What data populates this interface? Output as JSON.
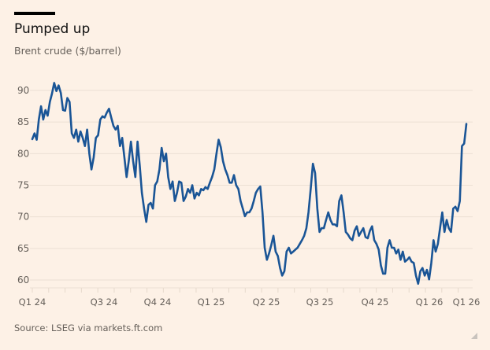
{
  "header": {
    "title": "Pumped up",
    "subtitle": "Brent crude ($/barrel)"
  },
  "footer": {
    "source": "Source: LSEG via markets.ft.com"
  },
  "colors": {
    "background": "#fdf1e6",
    "line": "#1a5596",
    "grid": "#ece0d4"
  },
  "chart_data": {
    "type": "line",
    "title": "Pumped up",
    "subtitle": "Brent crude ($/barrel)",
    "xlabel": "",
    "ylabel": "Brent crude ($/barrel)",
    "ylim": [
      58,
      92
    ],
    "yticks": [
      60,
      65,
      70,
      75,
      80,
      85,
      90
    ],
    "xticks": [
      "Q1 24",
      "Q3 24",
      "Q4 24",
      "Q1 25",
      "Q2 25",
      "Q3 25",
      "Q4 25",
      "Q1 26",
      "Q1 26"
    ],
    "x_range": [
      "Jan 2024",
      "Mar 2026"
    ],
    "grid": true,
    "legend": "none",
    "series": [
      {
        "name": "Brent crude",
        "values": [
          82.3,
          83.2,
          82.2,
          85.4,
          87.5,
          85.4,
          86.9,
          86.0,
          88.2,
          89.5,
          91.2,
          89.9,
          90.8,
          89.6,
          86.9,
          86.8,
          88.8,
          88.2,
          83.2,
          82.5,
          83.8,
          81.9,
          83.5,
          82.5,
          81.2,
          83.8,
          80.0,
          77.5,
          79.4,
          82.5,
          82.9,
          85.4,
          85.9,
          85.7,
          86.5,
          87.1,
          85.7,
          84.4,
          83.8,
          84.4,
          81.2,
          82.5,
          79.4,
          76.3,
          78.8,
          81.9,
          78.8,
          76.3,
          81.9,
          78.1,
          73.8,
          71.3,
          69.2,
          71.9,
          72.2,
          71.3,
          75.0,
          75.6,
          77.5,
          80.9,
          78.8,
          80.0,
          76.3,
          74.4,
          75.6,
          72.5,
          73.8,
          75.6,
          75.4,
          72.5,
          73.2,
          74.4,
          73.8,
          75.0,
          72.9,
          73.8,
          73.4,
          74.4,
          74.2,
          74.7,
          74.4,
          75.4,
          76.3,
          77.5,
          80.0,
          82.2,
          81.0,
          78.8,
          77.5,
          76.6,
          75.4,
          75.4,
          76.6,
          75.0,
          74.4,
          72.5,
          71.3,
          70.1,
          70.7,
          70.7,
          71.3,
          72.5,
          73.8,
          74.4,
          74.8,
          70.7,
          65.1,
          63.2,
          64.2,
          65.5,
          67.0,
          64.5,
          63.8,
          61.9,
          60.7,
          61.4,
          64.5,
          65.1,
          64.2,
          64.5,
          64.8,
          65.1,
          65.7,
          66.3,
          67.0,
          68.2,
          70.7,
          74.4,
          78.4,
          76.9,
          71.3,
          67.6,
          68.2,
          68.2,
          69.5,
          70.7,
          69.5,
          68.8,
          68.8,
          68.5,
          72.5,
          73.4,
          70.7,
          67.6,
          67.2,
          66.6,
          66.3,
          67.8,
          68.5,
          67.0,
          67.6,
          68.2,
          66.8,
          66.6,
          67.8,
          68.5,
          66.3,
          65.7,
          64.8,
          62.3,
          61.0,
          61.0,
          65.1,
          66.3,
          65.1,
          65.1,
          64.2,
          64.8,
          63.2,
          64.5,
          62.9,
          63.2,
          63.6,
          62.9,
          62.7,
          60.7,
          59.4,
          61.4,
          61.9,
          60.7,
          61.6,
          60.1,
          62.7,
          66.3,
          64.5,
          65.7,
          68.2,
          70.7,
          67.6,
          69.5,
          68.2,
          67.6,
          71.3,
          71.6,
          70.9,
          72.5,
          81.2,
          81.6,
          84.7
        ]
      }
    ]
  }
}
